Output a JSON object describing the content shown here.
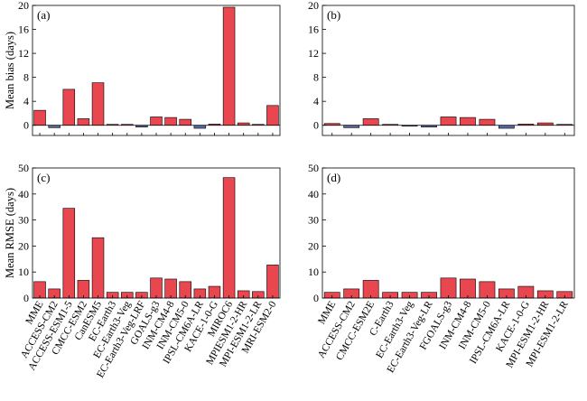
{
  "colors": {
    "positive": "#e8474f",
    "negative": "#5a6aa6",
    "frame": "#000000"
  },
  "chart_data": [
    {
      "type": "bar",
      "panel_label": "(a)",
      "ylabel": "Mean bias (days)",
      "ylim": [
        -1.7,
        20
      ],
      "yticks": [
        0,
        4,
        8,
        12,
        16,
        20
      ],
      "zero_line": true,
      "show_category_labels": false,
      "categories": [
        "MME",
        "ACCESS-CM2",
        "ACCESS-ESM1-5",
        "CMCC-ESM2",
        "CanESM5",
        "EC-Earth3",
        "EC-Earth3-Veg",
        "EC-Earth3-Veg-LRF",
        "GOALS-g3",
        "INM-CM4-8",
        "INM-CM5-0",
        "IPSL-CM6A-LR",
        "KACE-1-0-G",
        "MIROC6",
        "MPIESM1-2-HR",
        "MPI-ESM1-2-LR",
        "MRI-ESM2-0"
      ],
      "values": [
        2.5,
        -0.4,
        6.0,
        1.1,
        7.1,
        0.05,
        0.1,
        -0.3,
        1.4,
        1.3,
        1.0,
        -0.5,
        0.2,
        19.7,
        0.4,
        0.0,
        3.3
      ]
    },
    {
      "type": "bar",
      "panel_label": "(b)",
      "ylabel": "",
      "ylim": [
        -1.7,
        20
      ],
      "yticks": [
        0,
        4,
        8,
        12,
        16,
        20
      ],
      "zero_line": true,
      "show_category_labels": false,
      "categories": [
        "MME",
        "ACCESS-CM2",
        "CMCC-ESM2E",
        "C-Earth3",
        "EC-Earth3-Veg",
        "EC-Earth3-Veg-LR",
        "FGOALS-g3",
        "INM-CM4-8",
        "INM-CM5-0",
        "IPSL-CM6A-LR",
        "KACE-1-0-G",
        "MPI-ESM1-2-HR",
        "MPI-ESM1-2-LR"
      ],
      "values": [
        0.3,
        -0.4,
        1.1,
        0.0,
        -0.1,
        -0.3,
        1.4,
        1.3,
        1.0,
        -0.5,
        0.2,
        0.4,
        0.0
      ]
    },
    {
      "type": "bar",
      "panel_label": "(c)",
      "ylabel": "Mean RMSE (days)",
      "ylim": [
        0,
        50
      ],
      "yticks": [
        0,
        10,
        20,
        30,
        40,
        50
      ],
      "zero_line": false,
      "show_category_labels": true,
      "categories": [
        "MME",
        "ACCESS-CM2",
        "ACCESS-ESM1-5",
        "CMCC-ESM2",
        "CanESM5",
        "EC-Earth3",
        "EC-Earth3-Veg",
        "EC-Earth3-Veg-LRF",
        "GOALS-g3",
        "INM-CM4-8",
        "INM-CM5-0",
        "IPSL-CM6A-LR",
        "KACE-1-0-G",
        "MIROC6",
        "MPIESM1-2-HR",
        "MPI-ESM1-2-LR",
        "MRI-ESM2-0"
      ],
      "values": [
        6.3,
        3.5,
        34.5,
        6.8,
        23.2,
        2.2,
        2.2,
        2.2,
        7.7,
        7.3,
        6.3,
        3.5,
        4.5,
        46.3,
        2.8,
        2.5,
        12.7
      ]
    },
    {
      "type": "bar",
      "panel_label": "(d)",
      "ylabel": "",
      "ylim": [
        0,
        50
      ],
      "yticks": [
        0,
        10,
        20,
        30,
        40,
        50
      ],
      "zero_line": false,
      "show_category_labels": true,
      "categories": [
        "MME",
        "ACCESS-CM2",
        "CMCC-ESM2E",
        "C-Earth3",
        "EC-Earth3-Veg",
        "EC-Earth3-Veg-LR",
        "FGOALS-g3",
        "INM-CM4-8",
        "INM-CM5-0",
        "IPSL-CM6A-LR",
        "KACE-1-0-G",
        "MPI-ESM1-2-HR",
        "MPI-ESM1-2-LR"
      ],
      "values": [
        2.2,
        3.5,
        6.8,
        2.2,
        2.2,
        2.2,
        7.7,
        7.3,
        6.3,
        3.5,
        4.5,
        2.8,
        2.5
      ]
    }
  ]
}
